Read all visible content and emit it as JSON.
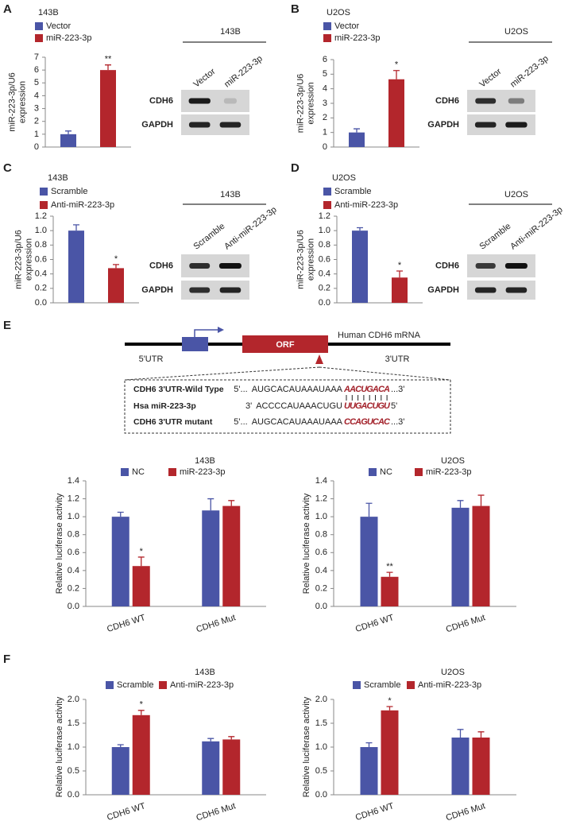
{
  "panel_labels": [
    "A",
    "B",
    "C",
    "D",
    "E",
    "F"
  ],
  "chart_data": [
    {
      "type": "bar",
      "title": "143B",
      "categories": [
        null
      ],
      "series": [
        {
          "name": "Vector",
          "color": "#4a55a6",
          "values": [
            1.0
          ],
          "errors": [
            0.25
          ]
        },
        {
          "name": "miR-223-3p",
          "color": "#b3262c",
          "values": [
            6.0
          ],
          "errors": [
            0.4
          ],
          "significance": [
            "**"
          ]
        }
      ],
      "ylabel": [
        "miR-223-3p/U6",
        "expression"
      ],
      "ylim": [
        0,
        7
      ],
      "yticks": [
        0,
        1,
        2,
        3,
        4,
        5,
        6,
        7
      ]
    },
    {
      "type": "bar",
      "title": "U2OS",
      "categories": [
        null
      ],
      "series": [
        {
          "name": "Vector",
          "color": "#4a55a6",
          "values": [
            1.0
          ],
          "errors": [
            0.25
          ]
        },
        {
          "name": "miR-223-3p",
          "color": "#b3262c",
          "values": [
            4.65
          ],
          "errors": [
            0.6
          ],
          "significance": [
            "*"
          ]
        }
      ],
      "ylabel": [
        "miR-223-3p/U6",
        "expression"
      ],
      "ylim": [
        0,
        6
      ],
      "yticks": [
        0,
        1,
        2,
        3,
        4,
        5,
        6
      ]
    },
    {
      "type": "bar",
      "title": "143B",
      "categories": [
        null
      ],
      "series": [
        {
          "name": "Scramble",
          "color": "#4a55a6",
          "values": [
            1.0
          ],
          "errors": [
            0.08
          ]
        },
        {
          "name": "Anti-miR-223-3p",
          "color": "#b3262c",
          "values": [
            0.48
          ],
          "errors": [
            0.05
          ],
          "significance": [
            "*"
          ]
        }
      ],
      "ylabel": [
        "miR-223-3p/U6",
        "expression"
      ],
      "ylim": [
        0,
        1.2
      ],
      "yticks": [
        {
          "value": 0,
          "label": "0.0"
        },
        0.2,
        0.4,
        0.6,
        0.8,
        {
          "value": 1,
          "label": "1.0"
        },
        1.2
      ]
    },
    {
      "type": "bar",
      "title": "U2OS",
      "categories": [
        null
      ],
      "series": [
        {
          "name": "Scramble",
          "color": "#4a55a6",
          "values": [
            1.0
          ],
          "errors": [
            0.04
          ]
        },
        {
          "name": "Anti-miR-223-3p",
          "color": "#b3262c",
          "values": [
            0.35
          ],
          "errors": [
            0.09
          ],
          "significance": [
            "*"
          ]
        }
      ],
      "ylabel": [
        "miR-223-3p/U6",
        "expression"
      ],
      "ylim": [
        0,
        1.2
      ],
      "yticks": [
        {
          "value": 0,
          "label": "0.0"
        },
        0.2,
        0.4,
        0.6,
        0.8,
        {
          "value": 1,
          "label": "1.0"
        },
        1.2
      ]
    },
    {
      "type": "bar",
      "title": "143B",
      "categories": [
        "CDH6 WT",
        "CDH6 Mut"
      ],
      "series": [
        {
          "name": "NC",
          "color": "#4a55a6",
          "values": [
            1.0,
            1.07
          ],
          "errors": [
            0.05,
            0.13
          ]
        },
        {
          "name": "miR-223-3p",
          "color": "#b3262c",
          "values": [
            0.45,
            1.12
          ],
          "errors": [
            0.1,
            0.06
          ],
          "significance": [
            "*",
            null
          ]
        }
      ],
      "ylabel": [
        "Relative luciferase activity"
      ],
      "ylim": [
        0,
        1.4
      ],
      "yticks": [
        {
          "value": 0,
          "label": "0.0"
        },
        0.2,
        0.4,
        0.6,
        0.8,
        {
          "value": 1,
          "label": "1.0"
        },
        1.2,
        1.4
      ]
    },
    {
      "type": "bar",
      "title": "U2OS",
      "categories": [
        "CDH6 WT",
        "CDH6 Mut"
      ],
      "series": [
        {
          "name": "NC",
          "color": "#4a55a6",
          "values": [
            1.0,
            1.1
          ],
          "errors": [
            0.15,
            0.08
          ]
        },
        {
          "name": "miR-223-3p",
          "color": "#b3262c",
          "values": [
            0.33,
            1.12
          ],
          "errors": [
            0.05,
            0.12
          ],
          "significance": [
            "**",
            null
          ]
        }
      ],
      "ylabel": [
        "Relative luciferase activity"
      ],
      "ylim": [
        0,
        1.4
      ],
      "yticks": [
        {
          "value": 0,
          "label": "0.0"
        },
        0.2,
        0.4,
        0.6,
        0.8,
        {
          "value": 1,
          "label": "1.0"
        },
        1.2,
        1.4
      ]
    },
    {
      "type": "bar",
      "title": "143B",
      "categories": [
        "CDH6 WT",
        "CDH6 Mut"
      ],
      "series": [
        {
          "name": "Scramble",
          "color": "#4a55a6",
          "values": [
            1.0,
            1.12
          ],
          "errors": [
            0.05,
            0.06
          ]
        },
        {
          "name": "Anti-miR-223-3p",
          "color": "#b3262c",
          "values": [
            1.67,
            1.16
          ],
          "errors": [
            0.1,
            0.06
          ],
          "significance": [
            "*",
            null
          ]
        }
      ],
      "ylabel": [
        "Relative luciferase activity"
      ],
      "ylim": [
        0,
        2
      ],
      "yticks": [
        {
          "value": 0,
          "label": "0.0"
        },
        0.5,
        {
          "value": 1,
          "label": "1.0"
        },
        1.5,
        {
          "value": 2,
          "label": "2.0"
        }
      ]
    },
    {
      "type": "bar",
      "title": "U2OS",
      "categories": [
        "CDH6 WT",
        "CDH6 Mut"
      ],
      "series": [
        {
          "name": "Scramble",
          "color": "#4a55a6",
          "values": [
            1.0,
            1.2
          ],
          "errors": [
            0.09,
            0.17
          ]
        },
        {
          "name": "Anti-miR-223-3p",
          "color": "#b3262c",
          "values": [
            1.77,
            1.2
          ],
          "errors": [
            0.08,
            0.12
          ],
          "significance": [
            "*",
            null
          ]
        }
      ],
      "ylabel": [
        "Relative luciferase activity"
      ],
      "ylim": [
        0,
        2
      ],
      "yticks": [
        {
          "value": 0,
          "label": "0.0"
        },
        0.5,
        {
          "value": 1,
          "label": "1.0"
        },
        1.5,
        {
          "value": 2,
          "label": "2.0"
        }
      ]
    }
  ],
  "blots": [
    {
      "title": "143B",
      "lanes": [
        "Vector",
        "miR-223-3p"
      ],
      "rows": [
        "CDH6",
        "GAPDH"
      ]
    },
    {
      "title": "U2OS",
      "lanes": [
        "Vector",
        "miR-223-3p"
      ],
      "rows": [
        "CDH6",
        "GAPDH"
      ]
    },
    {
      "title": "143B",
      "lanes": [
        "Scramble",
        "Anti-miR-223-3p"
      ],
      "rows": [
        "CDH6",
        "GAPDH"
      ]
    },
    {
      "title": "U2OS",
      "lanes": [
        "Scramble",
        "Anti-miR-223-3p"
      ],
      "rows": [
        "CDH6",
        "GAPDH"
      ]
    }
  ],
  "diagram": {
    "five_utr": "5'UTR",
    "orf": "ORF",
    "three_utr": "3'UTR",
    "title": "Human CDH6 mRNA",
    "rows": [
      {
        "name": "CDH6 3'UTR-Wild Type",
        "left": "5'...",
        "sequence": "AUGCACAUAAAUAAA",
        "site": "AACUGACA",
        "right": "...3'"
      },
      {
        "name": "Hsa miR-223-3p",
        "left": "3'",
        "sequence": "ACCCCAUAAACUGU",
        "site": "UUGACUGU",
        "right": "5'"
      },
      {
        "name": "CDH6 3'UTR mutant",
        "left": "5'...",
        "sequence": "AUGCACAUAAAUAAA",
        "site": "CCAGUCAC",
        "right": "...3'"
      }
    ]
  }
}
